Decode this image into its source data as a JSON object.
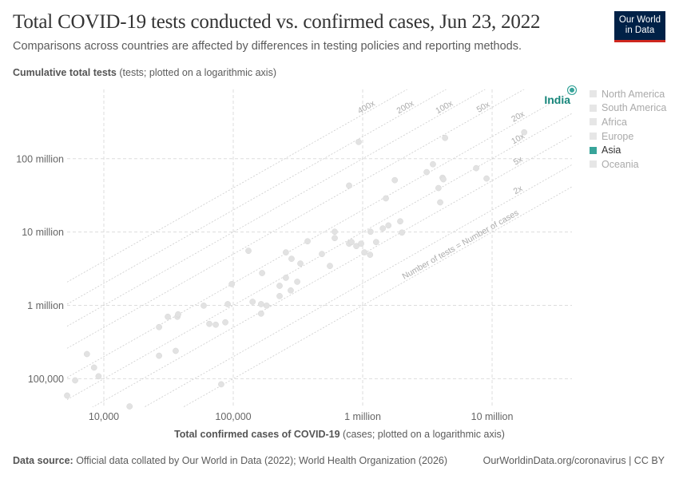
{
  "header": {
    "title": "Total COVID-19 tests conducted vs. confirmed cases, Jun 23, 2022",
    "subtitle": "Comparisons across countries are affected by differences in testing policies and reporting methods.",
    "logo": [
      "Our World",
      "in Data"
    ]
  },
  "footer": {
    "source_label": "Data source:",
    "source_text": " Official data collated by Our World in Data (2022); World Health Organization (2026)",
    "link": "OurWorldinData.org/coronavirus | CC BY"
  },
  "chart_data": {
    "type": "scatter",
    "title": "Total COVID-19 tests conducted vs. confirmed cases, Jun 23, 2022",
    "xlabel_bold": "Total confirmed cases of COVID-19",
    "xlabel_rest": " (cases; plotted on a logarithmic axis)",
    "ylabel_bold": "Cumulative total tests",
    "ylabel_rest": " (tests; plotted on a logarithmic axis)",
    "x_scale": "log",
    "y_scale": "log",
    "xlim": [
      5200,
      41400000
    ],
    "ylim": [
      41000,
      880000000
    ],
    "grid": true,
    "x_ticks": [
      {
        "v": 10000,
        "label": "10,000"
      },
      {
        "v": 100000,
        "label": "100,000"
      },
      {
        "v": 1000000,
        "label": "1 million"
      },
      {
        "v": 10000000,
        "label": "10 million"
      }
    ],
    "y_ticks": [
      {
        "v": 100000,
        "label": "100,000"
      },
      {
        "v": 1000000,
        "label": "1 million"
      },
      {
        "v": 10000000,
        "label": "10 million"
      },
      {
        "v": 100000000,
        "label": "100 million"
      }
    ],
    "ratio_lines": [
      {
        "k": 400,
        "label": "400x"
      },
      {
        "k": 200,
        "label": "200x"
      },
      {
        "k": 100,
        "label": "100x"
      },
      {
        "k": 50,
        "label": "50x"
      },
      {
        "k": 20,
        "label": "20x"
      },
      {
        "k": 10,
        "label": "10x"
      },
      {
        "k": 5,
        "label": "5x"
      },
      {
        "k": 2,
        "label": "2x"
      },
      {
        "k": 1,
        "label": "Number of tests = Number of cases"
      }
    ],
    "legend": {
      "placement": "right",
      "items": [
        {
          "label": "North America",
          "active": false
        },
        {
          "label": "South America",
          "active": false
        },
        {
          "label": "Africa",
          "active": false
        },
        {
          "label": "Europe",
          "active": false
        },
        {
          "label": "Asia",
          "active": true
        },
        {
          "label": "Oceania",
          "active": false
        }
      ]
    },
    "colors": {
      "highlight": "#38a49a",
      "inactive": "#e2e2e2",
      "label": "#17867b"
    },
    "highlighted": {
      "name": "India",
      "x": 43400000,
      "y": 860000000
    },
    "points": [
      [
        5200,
        59000
      ],
      [
        6000,
        95000
      ],
      [
        7400,
        217000
      ],
      [
        8400,
        142000
      ],
      [
        9100,
        108000
      ],
      [
        15800,
        42000
      ],
      [
        26700,
        506000
      ],
      [
        26700,
        206000
      ],
      [
        31200,
        700000
      ],
      [
        35900,
        240000
      ],
      [
        37000,
        700000
      ],
      [
        37500,
        755000
      ],
      [
        59100,
        993000
      ],
      [
        65300,
        560000
      ],
      [
        73200,
        546000
      ],
      [
        86800,
        588000
      ],
      [
        80700,
        84000
      ],
      [
        90600,
        1040000
      ],
      [
        97300,
        1950000
      ],
      [
        131000,
        5550000
      ],
      [
        141000,
        1120000
      ],
      [
        164000,
        1040000
      ],
      [
        167000,
        2760000
      ],
      [
        164000,
        773000
      ],
      [
        181000,
        993000
      ],
      [
        228000,
        1850000
      ],
      [
        228000,
        1340000
      ],
      [
        255000,
        2380000
      ],
      [
        255000,
        5280000
      ],
      [
        278000,
        1600000
      ],
      [
        282000,
        4320000
      ],
      [
        312000,
        2100000
      ],
      [
        330000,
        3720000
      ],
      [
        375000,
        7480000
      ],
      [
        484000,
        5020000
      ],
      [
        558000,
        3450000
      ],
      [
        608000,
        10100000
      ],
      [
        608000,
        8270000
      ],
      [
        931000,
        169000000
      ],
      [
        785000,
        43000000
      ],
      [
        1770000,
        51000000
      ],
      [
        1510000,
        28800000
      ],
      [
        3490000,
        84000000
      ],
      [
        3120000,
        65600000
      ],
      [
        4140000,
        55000000
      ],
      [
        4200000,
        52400000
      ],
      [
        3850000,
        39800000
      ],
      [
        3970000,
        25400000
      ],
      [
        4330000,
        192000000
      ],
      [
        7530000,
        74300000
      ],
      [
        9060000,
        53700000
      ],
      [
        17700000,
        229000000
      ],
      [
        1950000,
        14000000
      ],
      [
        1580000,
        12300000
      ],
      [
        1430000,
        11200000
      ],
      [
        1150000,
        10100000
      ],
      [
        2010000,
        9840000
      ],
      [
        785000,
        6950000
      ],
      [
        820000,
        7300000
      ],
      [
        893000,
        6440000
      ],
      [
        972000,
        6950000
      ],
      [
        1270000,
        7300000
      ],
      [
        1030000,
        5280000
      ],
      [
        1140000,
        4900000
      ]
    ]
  }
}
